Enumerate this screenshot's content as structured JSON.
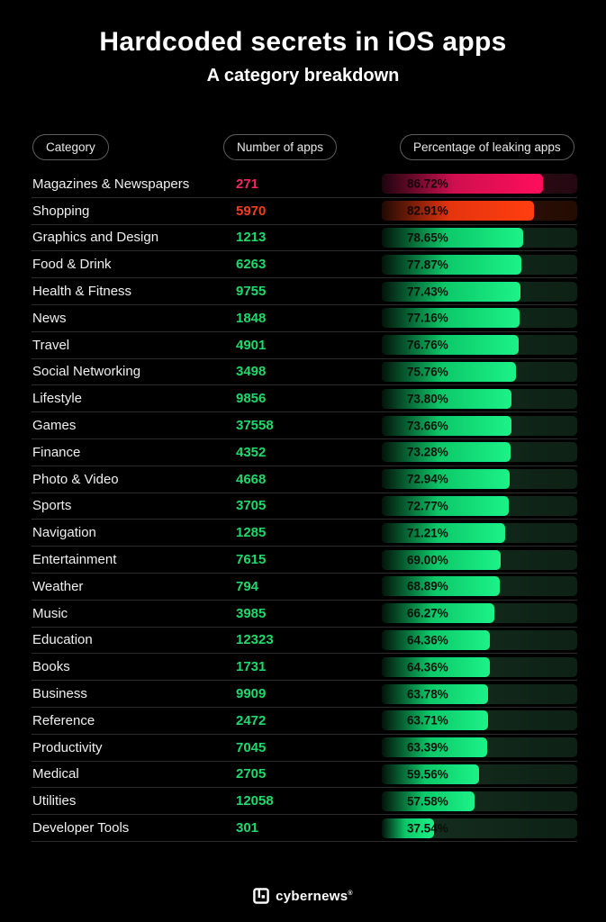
{
  "title": "Hardcoded secrets in iOS apps",
  "subtitle": "A category breakdown",
  "header": {
    "columns": [
      {
        "label": "Category"
      },
      {
        "label": "Number of apps"
      },
      {
        "label": "Percentage of leaking apps"
      }
    ]
  },
  "table": {
    "rows": [
      {
        "category": "Magazines & Newspapers",
        "apps": "271",
        "percent": 86.72,
        "percent_label": "86.72%",
        "theme": "pink"
      },
      {
        "category": "Shopping",
        "apps": "5970",
        "percent": 82.91,
        "percent_label": "82.91%",
        "theme": "orange"
      },
      {
        "category": "Graphics and Design",
        "apps": "1213",
        "percent": 78.65,
        "percent_label": "78.65%",
        "theme": "green"
      },
      {
        "category": "Food & Drink",
        "apps": "6263",
        "percent": 77.87,
        "percent_label": "77.87%",
        "theme": "green"
      },
      {
        "category": "Health & Fitness",
        "apps": "9755",
        "percent": 77.43,
        "percent_label": "77.43%",
        "theme": "green"
      },
      {
        "category": "News",
        "apps": "1848",
        "percent": 77.16,
        "percent_label": "77.16%",
        "theme": "green"
      },
      {
        "category": "Travel",
        "apps": "4901",
        "percent": 76.76,
        "percent_label": "76.76%",
        "theme": "green"
      },
      {
        "category": "Social Networking",
        "apps": "3498",
        "percent": 75.76,
        "percent_label": "75.76%",
        "theme": "green"
      },
      {
        "category": "Lifestyle",
        "apps": "9856",
        "percent": 73.8,
        "percent_label": "73.80%",
        "theme": "green"
      },
      {
        "category": "Games",
        "apps": "37558",
        "percent": 73.66,
        "percent_label": "73.66%",
        "theme": "green"
      },
      {
        "category": "Finance",
        "apps": "4352",
        "percent": 73.28,
        "percent_label": "73.28%",
        "theme": "green"
      },
      {
        "category": "Photo & Video",
        "apps": "4668",
        "percent": 72.94,
        "percent_label": "72.94%",
        "theme": "green"
      },
      {
        "category": "Sports",
        "apps": "3705",
        "percent": 72.77,
        "percent_label": "72.77%",
        "theme": "green"
      },
      {
        "category": "Navigation",
        "apps": "1285",
        "percent": 71.21,
        "percent_label": "71.21%",
        "theme": "green"
      },
      {
        "category": "Entertainment",
        "apps": "7615",
        "percent": 69.0,
        "percent_label": "69.00%",
        "theme": "green"
      },
      {
        "category": "Weather",
        "apps": "794",
        "percent": 68.89,
        "percent_label": "68.89%",
        "theme": "green"
      },
      {
        "category": "Music",
        "apps": "3985",
        "percent": 66.27,
        "percent_label": "66.27%",
        "theme": "green"
      },
      {
        "category": "Education",
        "apps": "12323",
        "percent": 64.36,
        "percent_label": "64.36%",
        "theme": "green"
      },
      {
        "category": "Books",
        "apps": "1731",
        "percent": 64.36,
        "percent_label": "64.36%",
        "theme": "green"
      },
      {
        "category": "Business",
        "apps": "9909",
        "percent": 63.78,
        "percent_label": "63.78%",
        "theme": "green"
      },
      {
        "category": "Reference",
        "apps": "2472",
        "percent": 63.71,
        "percent_label": "63.71%",
        "theme": "green"
      },
      {
        "category": "Productivity",
        "apps": "7045",
        "percent": 63.39,
        "percent_label": "63.39%",
        "theme": "green"
      },
      {
        "category": "Medical",
        "apps": "2705",
        "percent": 59.56,
        "percent_label": "59.56%",
        "theme": "green"
      },
      {
        "category": "Utilities",
        "apps": "12058",
        "percent": 57.58,
        "percent_label": "57.58%",
        "theme": "green"
      },
      {
        "category": "Developer Tools",
        "apps": "301",
        "percent": 37.54,
        "percent_label": "37.54%",
        "theme": "green"
      }
    ]
  },
  "footer": {
    "brand": "cybernews",
    "registered": "®"
  },
  "colors": {
    "background": "#000000",
    "accent_green": "#1cf287",
    "accent_green_text": "#20d96d",
    "accent_pink": "#ff0e5c",
    "accent_orange": "#ff3e10",
    "separator": "#2c2c2c",
    "pill_border": "#5d5d5d",
    "bar_label": "#081109"
  },
  "chart_data": {
    "type": "bar",
    "orientation": "horizontal",
    "title": "Hardcoded secrets in iOS apps",
    "subtitle": "A category breakdown",
    "categories": [
      "Magazines & Newspapers",
      "Shopping",
      "Graphics and Design",
      "Food & Drink",
      "Health & Fitness",
      "News",
      "Travel",
      "Social Networking",
      "Lifestyle",
      "Games",
      "Finance",
      "Photo & Video",
      "Sports",
      "Navigation",
      "Entertainment",
      "Weather",
      "Music",
      "Education",
      "Books",
      "Business",
      "Reference",
      "Productivity",
      "Medical",
      "Utilities",
      "Developer Tools"
    ],
    "series": [
      {
        "name": "Number of apps",
        "values": [
          271,
          5970,
          1213,
          6263,
          9755,
          1848,
          4901,
          3498,
          9856,
          37558,
          4352,
          4668,
          3705,
          1285,
          7615,
          794,
          3985,
          12323,
          1731,
          9909,
          2472,
          7045,
          2705,
          12058,
          301
        ]
      },
      {
        "name": "Percentage of leaking apps",
        "values": [
          86.72,
          82.91,
          78.65,
          77.87,
          77.43,
          77.16,
          76.76,
          75.76,
          73.8,
          73.66,
          73.28,
          72.94,
          72.77,
          71.21,
          69.0,
          68.89,
          66.27,
          64.36,
          64.36,
          63.78,
          63.71,
          63.39,
          59.56,
          57.58,
          37.54
        ]
      }
    ],
    "xlim": [
      0,
      100
    ],
    "grid": false,
    "legend_position": "none",
    "bar_color_default": "#1cf287",
    "bar_color_overrides": {
      "Magazines & Newspapers": "#ff0e5c",
      "Shopping": "#ff3e10"
    }
  }
}
